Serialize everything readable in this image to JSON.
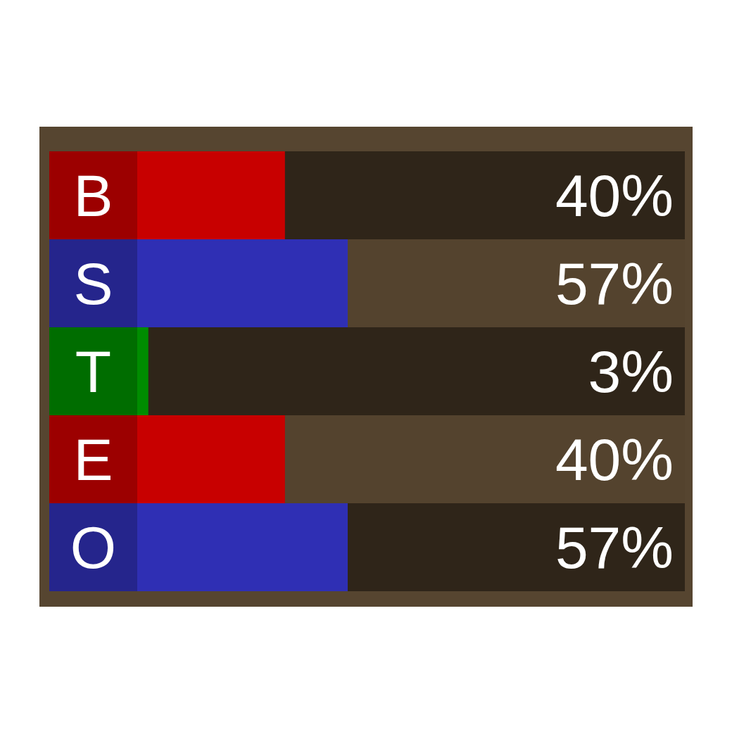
{
  "chart_data": {
    "type": "bar",
    "orientation": "horizontal",
    "categories": [
      "B",
      "S",
      "T",
      "E",
      "O"
    ],
    "values": [
      40,
      57,
      3,
      40,
      57
    ],
    "colors": [
      "#c80000",
      "#2f2fb4",
      "#008c00",
      "#c80000",
      "#2f2fb4"
    ],
    "value_labels": [
      "40%",
      "57%",
      "3%",
      "40%",
      "57%"
    ]
  }
}
